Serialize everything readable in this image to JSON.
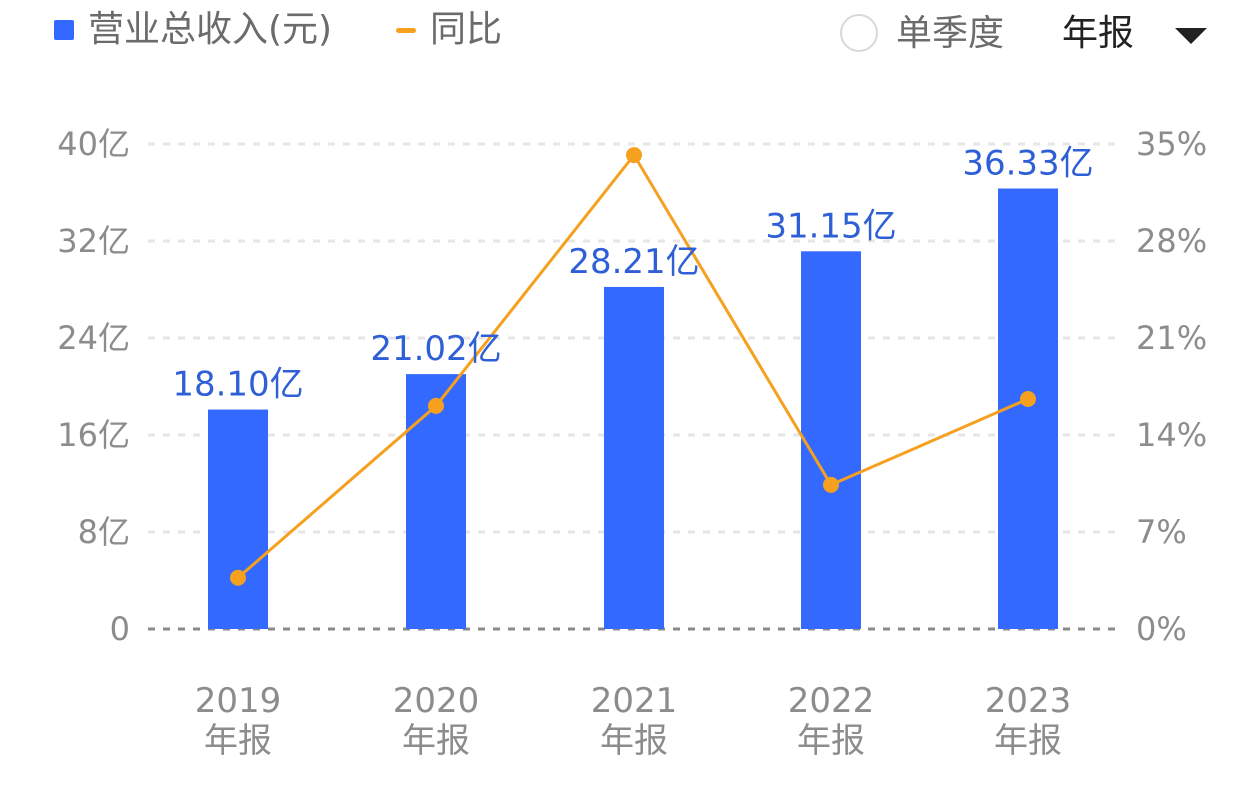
{
  "legend": {
    "revenue_label": "营业总收入(元)",
    "yoy_label": "同比"
  },
  "controls": {
    "quarter_label": "单季度",
    "period_value": "年报"
  },
  "colors": {
    "bar": "#3369ff",
    "line": "#f5a01e",
    "data_label": "#2f5fd6",
    "tick": "#8c8c8c",
    "grid": "#e6e6e6"
  },
  "chart_data": {
    "type": "bar",
    "categories": [
      "2019\n年报",
      "2020\n年报",
      "2021\n年报",
      "2022\n年报",
      "2023\n年报"
    ],
    "series": [
      {
        "name": "营业总收入(元)",
        "type": "bar",
        "axis": "left",
        "values": [
          18.1,
          21.02,
          28.21,
          31.15,
          36.33
        ],
        "labels": [
          "18.10亿",
          "21.02亿",
          "28.21亿",
          "31.15亿",
          "36.33亿"
        ]
      },
      {
        "name": "同比",
        "type": "line",
        "axis": "right",
        "values": [
          3.7,
          16.1,
          34.2,
          10.4,
          16.6
        ]
      }
    ],
    "y_left": {
      "ylim": [
        0,
        40
      ],
      "ticks": [
        0,
        8,
        16,
        24,
        32,
        40
      ],
      "tick_labels": [
        "0",
        "8亿",
        "16亿",
        "24亿",
        "32亿",
        "40亿"
      ]
    },
    "y_right": {
      "ylim": [
        0,
        35
      ],
      "ticks": [
        0,
        7,
        14,
        21,
        28,
        35
      ],
      "tick_labels": [
        "0%",
        "7%",
        "14%",
        "21%",
        "28%",
        "35%"
      ]
    },
    "grid": true,
    "legend_position": "top-left"
  }
}
